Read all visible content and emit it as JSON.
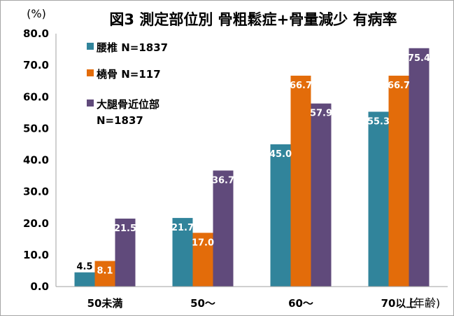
{
  "chart_data": {
    "type": "bar",
    "title": "図3 測定部位別 骨粗鬆症+骨量減少 有病率",
    "ylabel": "(%)",
    "xlabel": "(年齢)",
    "categories": [
      "50未満",
      "50〜",
      "60〜",
      "70以上"
    ],
    "ylim": [
      0,
      80
    ],
    "yticks": [
      "0.0",
      "10.0",
      "20.0",
      "30.0",
      "40.0",
      "50.0",
      "60.0",
      "70.0",
      "80.0"
    ],
    "grid": false,
    "legend_position": "top-left",
    "series": [
      {
        "name": "腰椎 N=1837",
        "color": "#31849b",
        "values": [
          4.5,
          21.7,
          45.0,
          55.3
        ],
        "labels": [
          "4.5",
          "21.7",
          "45.0",
          "55.3"
        ]
      },
      {
        "name": "橈骨 N=117",
        "color": "#e36c0a",
        "values": [
          8.1,
          17.0,
          66.7,
          66.7
        ],
        "labels": [
          "8.1",
          "17.0",
          "66.7",
          "66.7"
        ]
      },
      {
        "name_lines": [
          "大腿骨近位部",
          "N=1837"
        ],
        "color": "#604a7b",
        "values": [
          21.5,
          36.7,
          57.9,
          75.4
        ],
        "labels": [
          "21.5",
          "36.7",
          "57.9",
          "75.4"
        ]
      }
    ]
  }
}
